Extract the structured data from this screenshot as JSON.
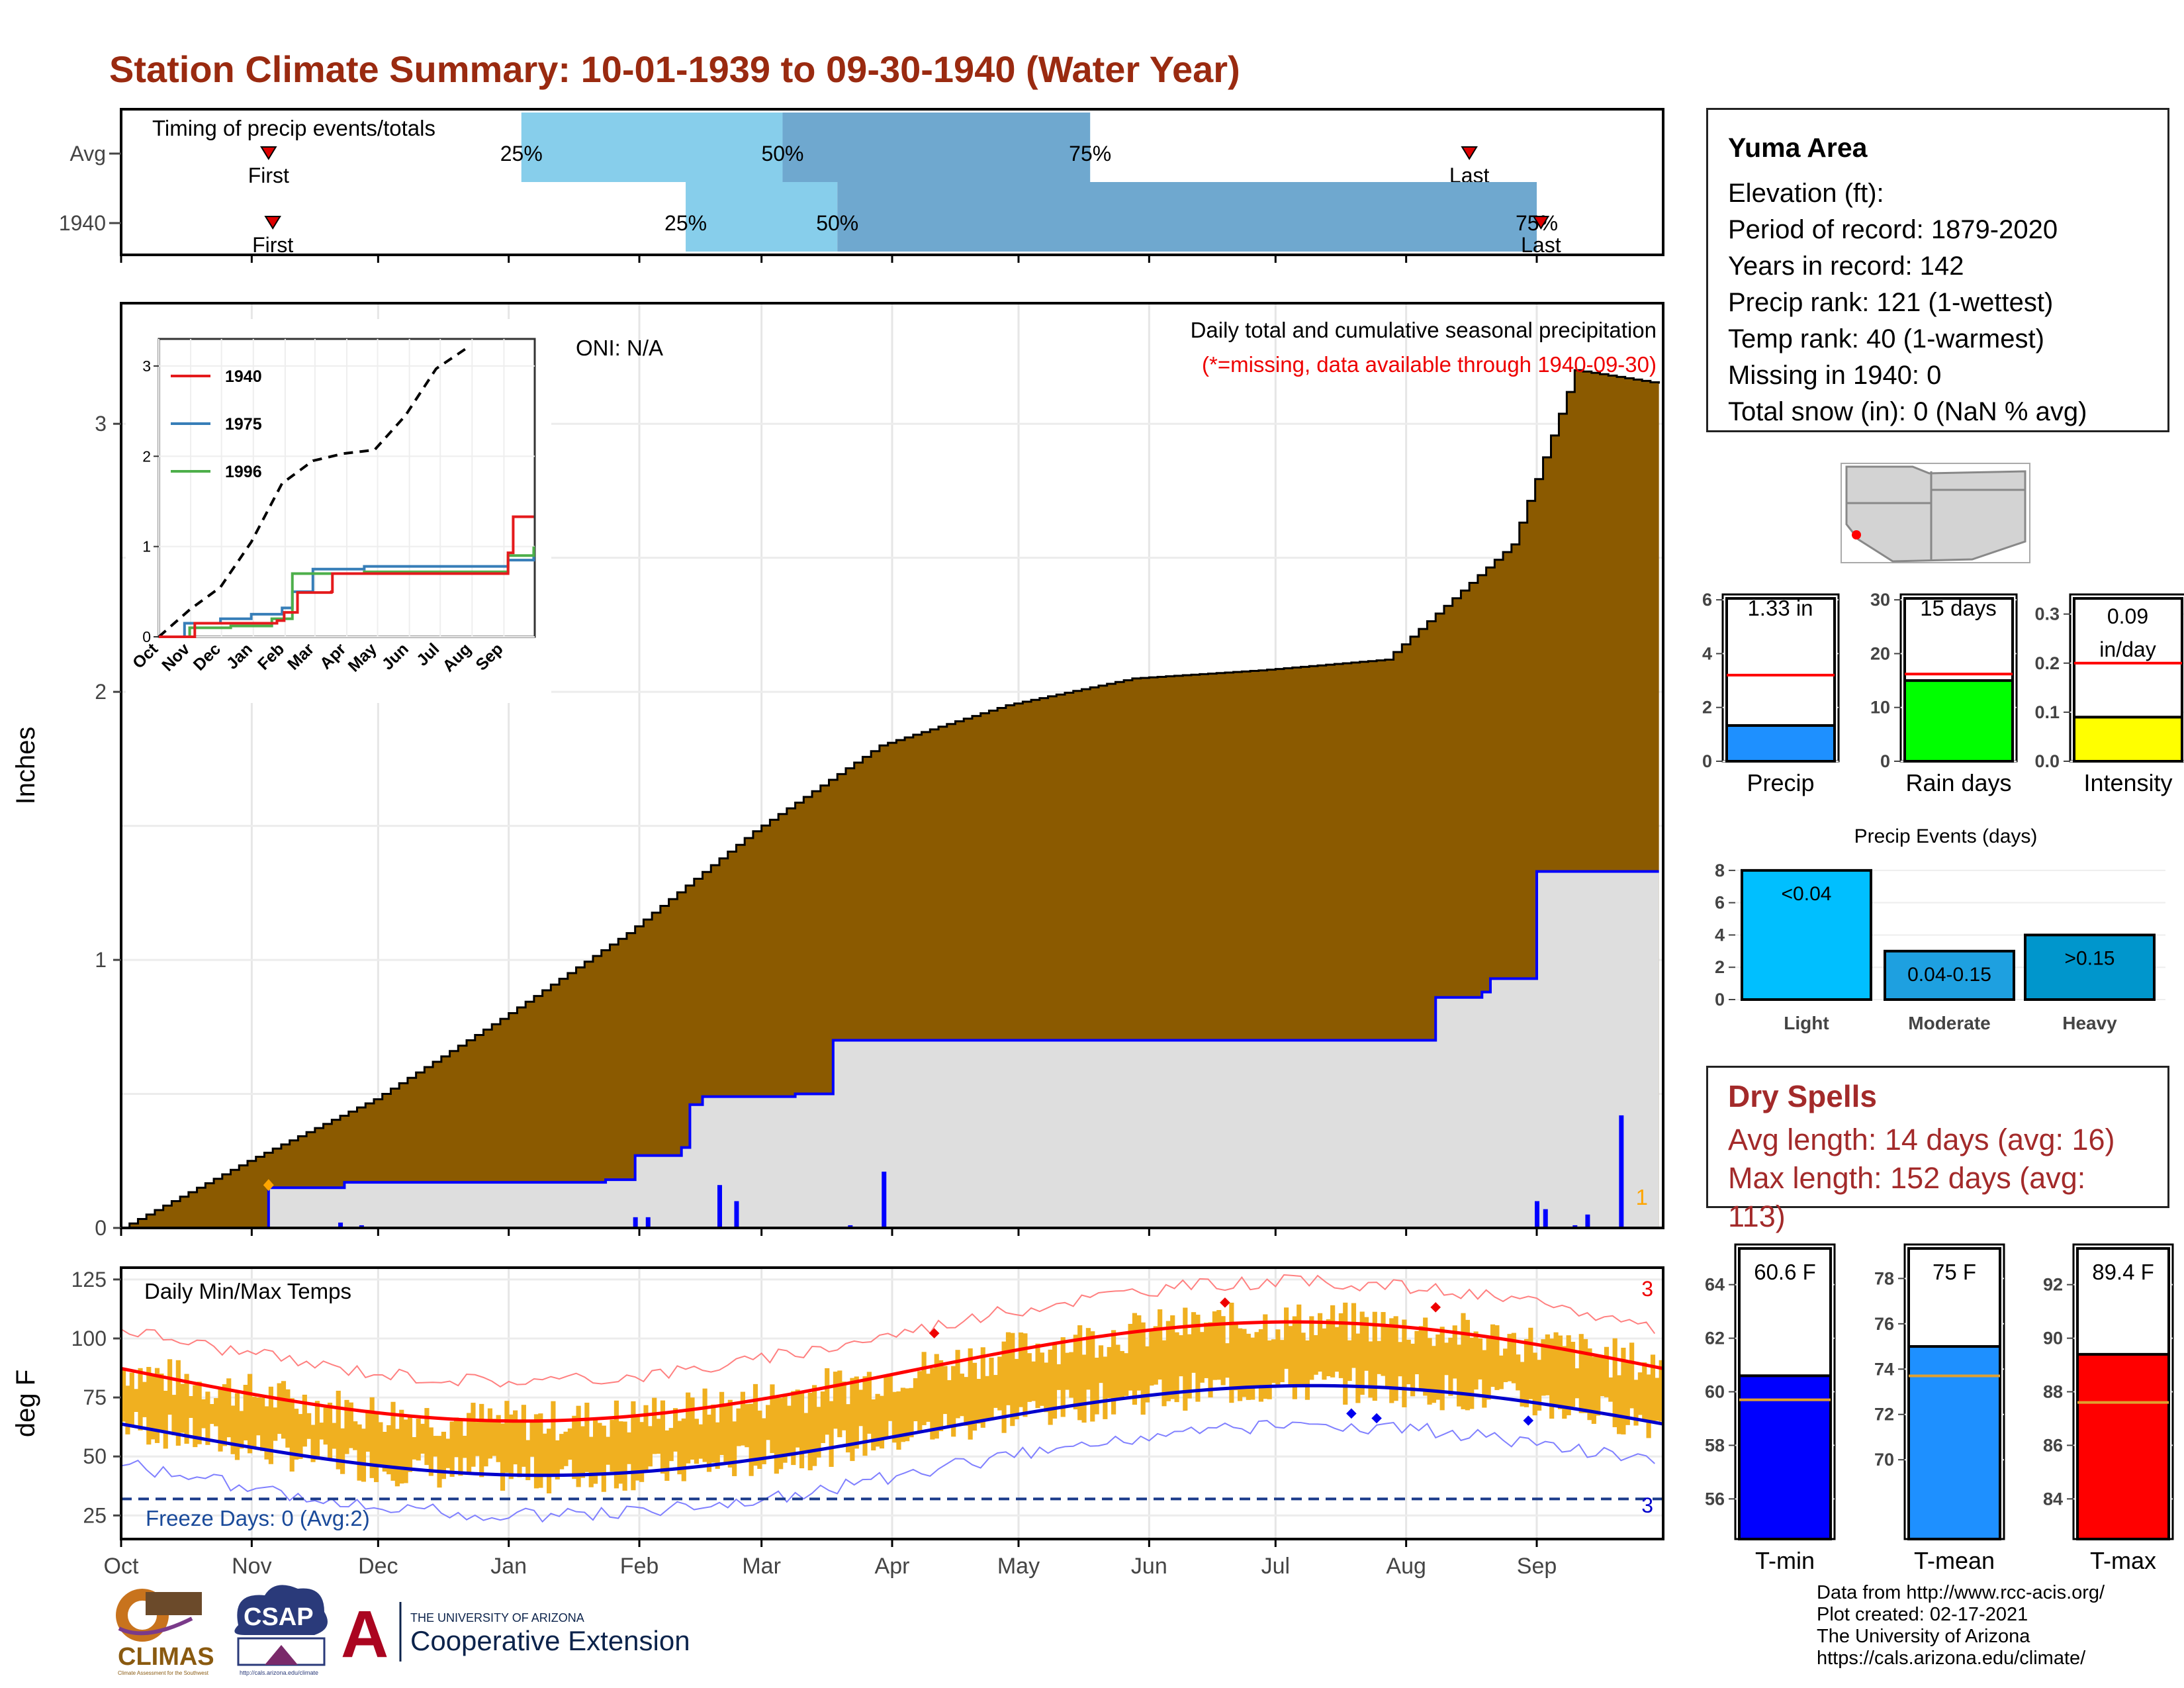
{
  "title": "Station Climate Summary: 10-01-1939 to 09-30-1940 (Water Year)",
  "colors": {
    "title": "#9a2a10",
    "precip_fill": "#8b5a00",
    "avg_fill": "#dedede",
    "avg_line": "#0000ff",
    "tmax": "#ff0000",
    "tmin": "#0000cc",
    "range_fill": "#f0b020",
    "light_blue": "#87ceeb",
    "mid_blue": "#6fa8cf"
  },
  "timing": {
    "label": "Timing of precip events/totals",
    "rows": [
      "Avg",
      "1940"
    ],
    "first_label": "First",
    "last_label": "Last",
    "avg": {
      "first_day": 35,
      "q25": 95,
      "q50": 157,
      "q75": 230,
      "last_day": 320
    },
    "y1940": {
      "first_day": 36,
      "q25": 134,
      "q50": 170,
      "q75": 336,
      "last_day": 337
    },
    "q_labels": [
      "25%",
      "50%",
      "75%"
    ]
  },
  "precip": {
    "ylabel": "Inches",
    "header1": "Daily total and cumulative seasonal precipitation",
    "header2": "(*=missing, data available through 1940-09-30)",
    "oni": "ONI: N/A",
    "right_marker": "1",
    "yticks": [
      "0",
      "1",
      "2",
      "3"
    ],
    "ylim": [
      0,
      3.45
    ],
    "climo_cum": [
      [
        0,
        0
      ],
      [
        30,
        0.25
      ],
      [
        60,
        0.48
      ],
      [
        90,
        0.78
      ],
      [
        120,
        1.1
      ],
      [
        150,
        1.48
      ],
      [
        180,
        1.8
      ],
      [
        210,
        1.95
      ],
      [
        240,
        2.05
      ],
      [
        270,
        2.08
      ],
      [
        300,
        2.12
      ],
      [
        330,
        2.55
      ],
      [
        345,
        3.2
      ],
      [
        365,
        3.15
      ]
    ],
    "year_cum": [
      [
        0,
        0
      ],
      [
        35,
        0.15
      ],
      [
        53,
        0.17
      ],
      [
        115,
        0.18
      ],
      [
        122,
        0.27
      ],
      [
        133,
        0.3
      ],
      [
        135,
        0.46
      ],
      [
        138,
        0.49
      ],
      [
        160,
        0.5
      ],
      [
        168,
        0.5
      ],
      [
        169,
        0.7
      ],
      [
        290,
        0.7
      ],
      [
        311,
        0.7
      ],
      [
        312,
        0.86
      ],
      [
        323,
        0.88
      ],
      [
        325,
        0.93
      ],
      [
        335,
        0.93
      ],
      [
        336,
        1.33
      ],
      [
        365,
        1.33
      ]
    ],
    "daily_bars": [
      [
        52,
        0.02
      ],
      [
        57,
        0.01
      ],
      [
        122,
        0.04
      ],
      [
        125,
        0.04
      ],
      [
        142,
        0.16
      ],
      [
        146,
        0.1
      ],
      [
        173,
        0.01
      ],
      [
        181,
        0.21
      ],
      [
        336,
        0.1
      ],
      [
        338,
        0.07
      ],
      [
        345,
        0.01
      ],
      [
        348,
        0.05
      ],
      [
        356,
        0.42
      ]
    ]
  },
  "inset": {
    "series": [
      {
        "name": "1940",
        "color": "#e41a1c"
      },
      {
        "name": "1975",
        "color": "#377eb8"
      },
      {
        "name": "1996",
        "color": "#4daf4a"
      }
    ],
    "yticks": [
      "0",
      "1",
      "2",
      "3"
    ],
    "avg_curve": [
      [
        0,
        0
      ],
      [
        30,
        0.3
      ],
      [
        60,
        0.55
      ],
      [
        90,
        1.05
      ],
      [
        120,
        1.7
      ],
      [
        150,
        1.95
      ],
      [
        180,
        2.03
      ],
      [
        210,
        2.07
      ],
      [
        240,
        2.45
      ],
      [
        270,
        2.97
      ],
      [
        300,
        3.2
      ]
    ],
    "s1940": [
      [
        0,
        0
      ],
      [
        35,
        0.15
      ],
      [
        115,
        0.18
      ],
      [
        122,
        0.27
      ],
      [
        135,
        0.49
      ],
      [
        168,
        0.5
      ],
      [
        169,
        0.7
      ],
      [
        333,
        0.7
      ],
      [
        340,
        0.93
      ],
      [
        345,
        1.33
      ],
      [
        365,
        1.33
      ]
    ],
    "s1975": [
      [
        0,
        0
      ],
      [
        25,
        0.15
      ],
      [
        60,
        0.2
      ],
      [
        90,
        0.25
      ],
      [
        120,
        0.32
      ],
      [
        130,
        0.5
      ],
      [
        150,
        0.75
      ],
      [
        200,
        0.78
      ],
      [
        300,
        0.78
      ],
      [
        340,
        0.85
      ],
      [
        365,
        0.95
      ]
    ],
    "s1996": [
      [
        0,
        0
      ],
      [
        30,
        0.1
      ],
      [
        70,
        0.12
      ],
      [
        110,
        0.2
      ],
      [
        130,
        0.7
      ],
      [
        200,
        0.72
      ],
      [
        320,
        0.72
      ],
      [
        340,
        0.9
      ],
      [
        365,
        1.0
      ]
    ]
  },
  "month_labels": [
    "Oct",
    "Nov",
    "Dec",
    "Jan",
    "Feb",
    "Mar",
    "Apr",
    "May",
    "Jun",
    "Jul",
    "Aug",
    "Sep"
  ],
  "temps": {
    "label": "Daily Min/Max Temps",
    "ylabel": "deg F",
    "yticks": [
      "25",
      "50",
      "75",
      "100",
      "125"
    ],
    "freeze_label": "Freeze Days: 0 (Avg:2)",
    "max_marker": "3",
    "min_marker": "3",
    "ylim": [
      15,
      130
    ]
  },
  "side": {
    "station": "Yuma Area",
    "elevation": "Elevation (ft):",
    "period": "Period of record: 1879-2020",
    "years": "Years in record: 142",
    "precip_rank": "Precip rank: 121 (1-wettest)",
    "temp_rank": "Temp rank: 40 (1-warmest)",
    "missing": "Missing in 1940: 0",
    "snow": "Total snow (in): 0 (NaN % avg)"
  },
  "gauges_precip": [
    {
      "label": "Precip",
      "value_text": "1.33 in",
      "value": 1.33,
      "avg": 3.2,
      "yticks": [
        "0",
        "2",
        "4",
        "6"
      ],
      "ymax": 6.2,
      "color": "#1e90ff"
    },
    {
      "label": "Rain days",
      "value_text": "15 days",
      "value": 15,
      "avg": 16.2,
      "yticks": [
        "0",
        "10",
        "20",
        "30"
      ],
      "ymax": 31,
      "color": "#00ff00"
    },
    {
      "label": "Intensity",
      "value_text": "0.09 in/day",
      "value": 0.09,
      "avg": 0.2,
      "yticks": [
        "0.0",
        "0.1",
        "0.2",
        "0.3"
      ],
      "ymax": 0.34,
      "color": "#ffff00"
    }
  ],
  "events": {
    "title": "Precip Events (days)",
    "yticks": [
      "0",
      "2",
      "4",
      "6",
      "8"
    ],
    "ymax": 8.2,
    "bars": [
      {
        "label": "Light",
        "inner": "<0.04",
        "value": 8,
        "color": "#00bfff"
      },
      {
        "label": "Moderate",
        "inner": "0.04-0.15",
        "value": 3,
        "color": "#1ea0e0"
      },
      {
        "label": "Heavy",
        "inner": ">0.15",
        "value": 4,
        "color": "#0096cc"
      }
    ]
  },
  "dry": {
    "title": "Dry Spells",
    "avg_len": "Avg length: 14 days (avg: 16)",
    "max_len": "Max length: 152 days (avg: 113)"
  },
  "gauges_temp": [
    {
      "label": "T-min",
      "value_text": "60.6 F",
      "value": 60.6,
      "avg": 59.7,
      "ymin": 54.5,
      "ymax": 65.5,
      "yticks": [
        "56",
        "58",
        "60",
        "62",
        "64"
      ],
      "color": "#0000ff"
    },
    {
      "label": "T-mean",
      "value_text": "75 F",
      "value": 75.0,
      "avg": 73.7,
      "ymin": 66.5,
      "ymax": 79.5,
      "yticks": [
        "70",
        "72",
        "74",
        "76",
        "78"
      ],
      "color": "#1e90ff"
    },
    {
      "label": "T-max",
      "value_text": "89.4 F",
      "value": 89.4,
      "avg": 87.6,
      "ymin": 82.5,
      "ymax": 93.5,
      "yticks": [
        "84",
        "86",
        "88",
        "90",
        "92"
      ],
      "color": "#ff0000"
    }
  ],
  "credits": {
    "line1": "Data from http://www.rcc-acis.org/",
    "line2": "Plot created: 02-17-2021",
    "line3": "The University of Arizona",
    "line4": "https://cals.arizona.edu/climate/"
  },
  "logos": {
    "climas": "CLIMAS",
    "climas_sub": "Climate Assessment for the Southwest",
    "csap": "CSAP",
    "csap_url": "http://cals.arizona.edu/climate",
    "ua_small": "THE UNIVERSITY OF ARIZONA",
    "ua_big": "Cooperative Extension",
    "ua_letter": "A"
  }
}
